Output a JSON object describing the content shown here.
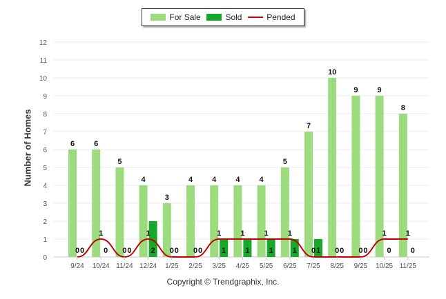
{
  "colors": {
    "for_sale": "#9ddc7e",
    "sold": "#16a82a",
    "pended": "#c00000",
    "grid": "#ebebeb",
    "axis": "#c8c8c8"
  },
  "legend": {
    "for_sale": "For Sale",
    "sold": "Sold",
    "pended": "Pended"
  },
  "footer": "Copyright © Trendgraphix, Inc.",
  "chart_data": {
    "type": "bar",
    "title": "",
    "xlabel": "",
    "ylabel": "Number of Homes",
    "ylim": [
      0,
      12
    ],
    "yticks": [
      0,
      1,
      2,
      3,
      4,
      5,
      6,
      7,
      8,
      9,
      10,
      11,
      12
    ],
    "grid": true,
    "legend_position": "top-center",
    "categories": [
      "9/24",
      "10/24",
      "11/24",
      "12/24",
      "1/25",
      "2/25",
      "3/25",
      "4/25",
      "5/25",
      "6/25",
      "7/25",
      "8/25",
      "9/25",
      "10/25",
      "11/25"
    ],
    "series": [
      {
        "name": "For Sale",
        "type": "bar",
        "values": [
          6,
          6,
          5,
          4,
          3,
          4,
          4,
          4,
          4,
          5,
          7,
          10,
          9,
          9,
          8
        ]
      },
      {
        "name": "Sold",
        "type": "bar",
        "values": [
          0,
          0,
          0,
          2,
          0,
          0,
          1,
          1,
          1,
          1,
          1,
          0,
          0,
          0,
          0
        ]
      },
      {
        "name": "Pended",
        "type": "line",
        "values": [
          0,
          1,
          0,
          1,
          0,
          0,
          1,
          1,
          1,
          1,
          0,
          0,
          0,
          1,
          1
        ]
      }
    ]
  }
}
